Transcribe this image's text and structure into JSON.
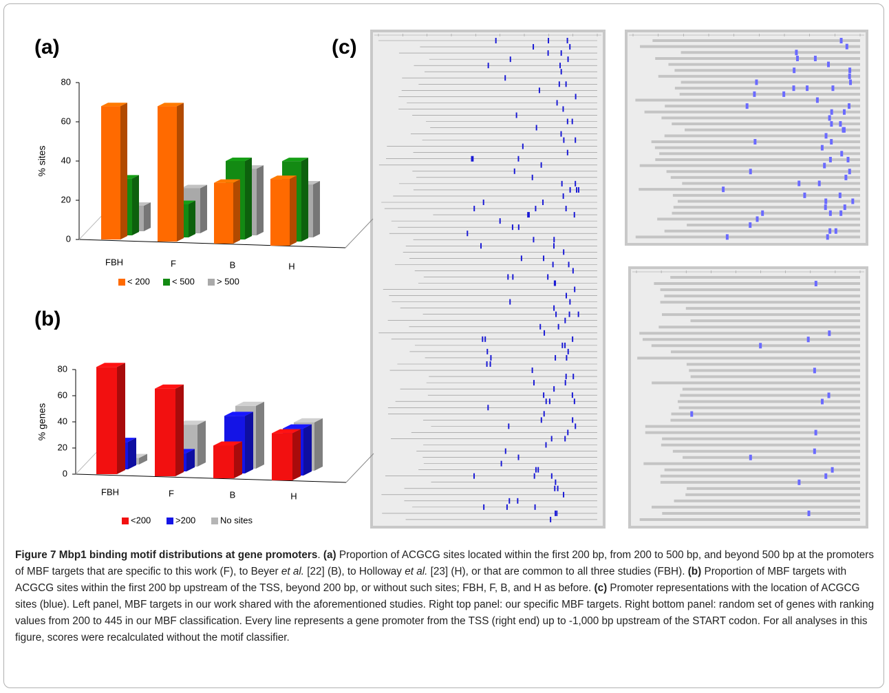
{
  "chart_data": [
    {
      "type": "bar",
      "panel_label": "(a)",
      "ylabel": "% sites",
      "categories": [
        "FBH",
        "F",
        "B",
        "H"
      ],
      "series": [
        {
          "name": "< 200",
          "color": "#ff6a00",
          "values": [
            68,
            69,
            31,
            34
          ]
        },
        {
          "name": "< 500",
          "color": "#138a13",
          "values": [
            29,
            17,
            40,
            41
          ]
        },
        {
          "name": "> 500",
          "color": "#a9a9a9",
          "values": [
            13,
            23,
            34,
            27
          ]
        }
      ],
      "ylim": [
        0,
        80
      ],
      "yticks": [
        0,
        20,
        40,
        60,
        80
      ],
      "legend": "bottom"
    },
    {
      "type": "bar",
      "panel_label": "(b)",
      "ylabel": "% genes",
      "categories": [
        "FBH",
        "F",
        "B",
        "H"
      ],
      "series": [
        {
          "name": "<200",
          "color": "#f21010",
          "values": [
            82,
            67,
            25,
            36
          ]
        },
        {
          "name": ">200",
          "color": "#1414e6",
          "values": [
            21,
            14,
            44,
            36
          ]
        },
        {
          "name": "No sites",
          "color": "#b5b5b5",
          "values": [
            5,
            32,
            48,
            37
          ]
        }
      ],
      "ylim": [
        0,
        80
      ],
      "yticks": [
        0,
        20,
        40,
        60,
        80
      ],
      "legend": "bottom"
    }
  ],
  "figure": {
    "panel_label": "(c)",
    "caption": [
      "Figure 7 Mbp1 binding motif distributions at gene promoters",
      ". ",
      "(a)",
      " Proportion of ACGCG sites located within the first 200 bp, from 200 to 500 bp, and beyond 500 bp at the promoters of MBF targets that are specific to this work (F), to Beyer ",
      "et al.",
      " [22] (B), to Holloway ",
      "et al.",
      " [23] (H), or that are common to all three studies (FBH). ",
      "(b)",
      " Proportion of MBF targets with ACGCG sites within the first 200 bp upstream of the TSS, beyond 200 bp, or without such sites; FBH, F, B, and H as before. ",
      "(c)",
      " Promoter representations with the location of ACGCG sites (blue). Left panel, MBF targets in our work shared with the aforementioned studies. Right top panel: our specific MBF targets. Right bottom panel: random set of genes with ranking values from 200 to 445 in our MBF classification. Every line represents a gene promoter from the TSS (right end) up to -1,000 bp upstream of the START codon. For all analyses in this figure, scores were recalculated without the motif classifier."
    ]
  }
}
